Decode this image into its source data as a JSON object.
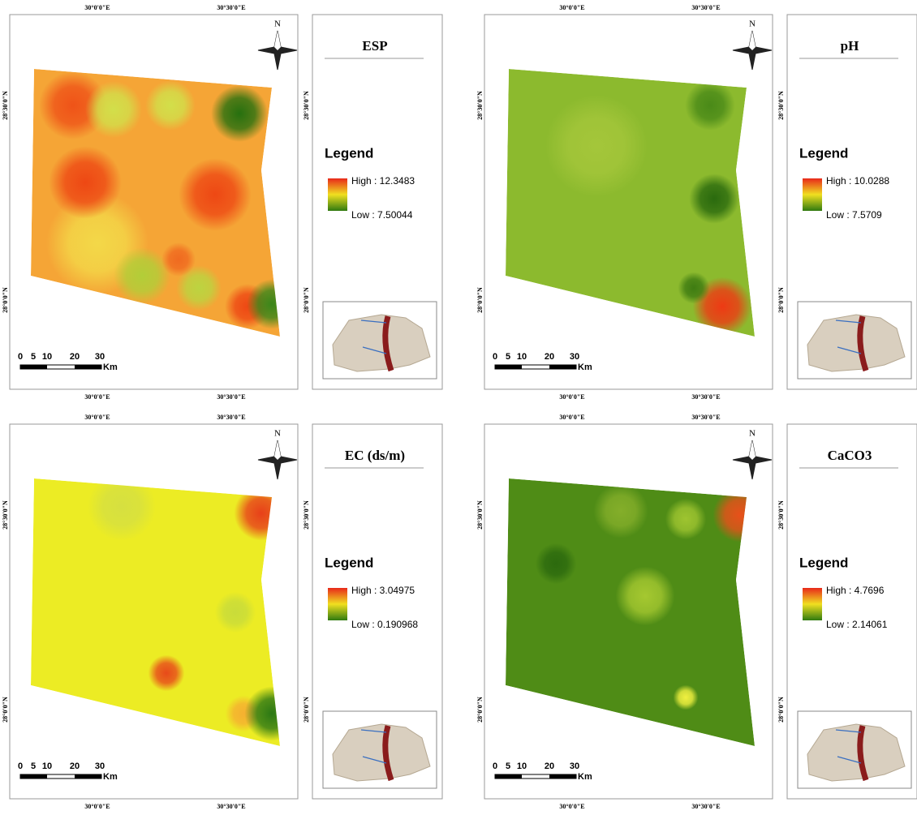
{
  "panels": [
    {
      "title": "ESP",
      "legend": "Legend",
      "high": "High : 12.3483",
      "low": "Low : 7.50044"
    },
    {
      "title": "pH",
      "legend": "Legend",
      "high": "High : 10.0288",
      "low": "Low : 7.5709"
    },
    {
      "title": "EC (ds/m)",
      "legend": "Legend",
      "high": "High : 3.04975",
      "low": "Low : 0.190968"
    },
    {
      "title": "CaCO3",
      "legend": "Legend",
      "high": "High : 4.7696",
      "low": "Low : 2.14061"
    }
  ],
  "coords": {
    "lon": [
      "30°0'0\"E",
      "30°30'0\"E"
    ],
    "lat": [
      "28°30'0\"N",
      "28°0'0\"N"
    ]
  },
  "north": "N",
  "scale": {
    "ticks": [
      "0",
      "5",
      "10",
      "20",
      "30"
    ],
    "unit": "Km"
  }
}
